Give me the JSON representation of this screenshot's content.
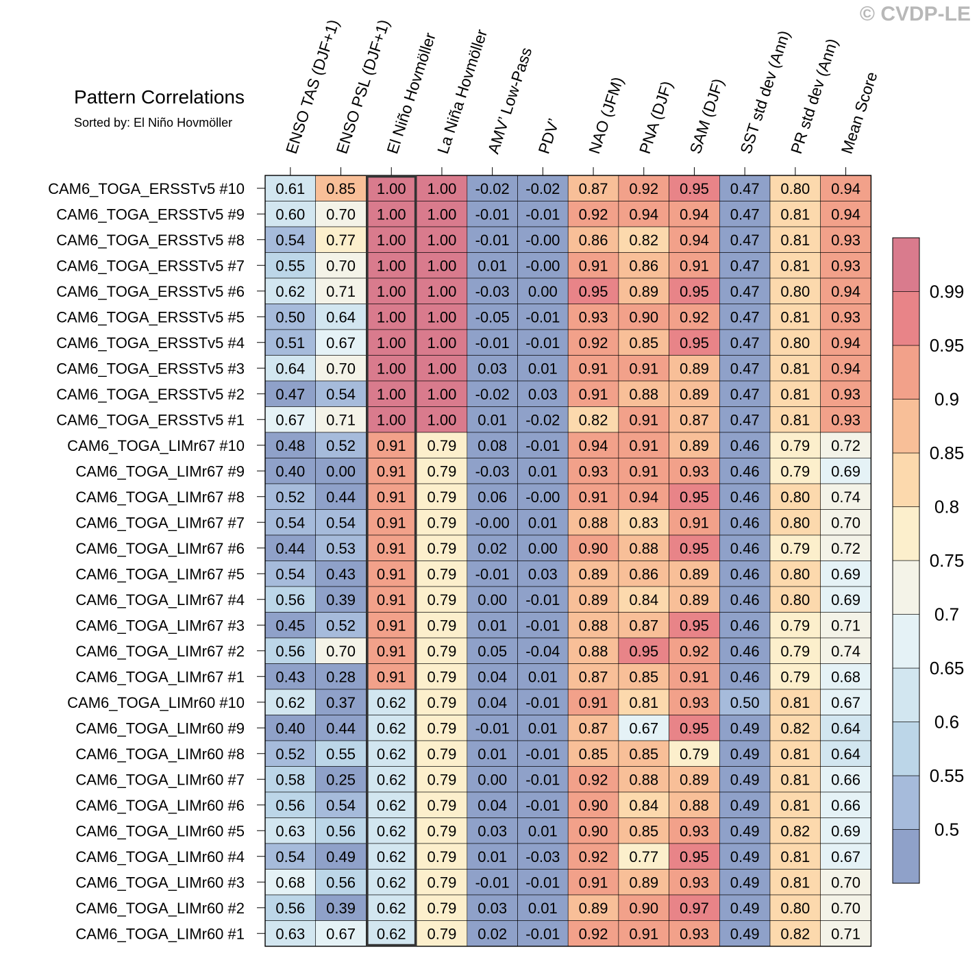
{
  "copyright": "© CVDP-LE",
  "title": "Pattern Correlations",
  "subtitle": "Sorted by: El Niño Hovmöller",
  "colors": [
    "#8fa1c9",
    "#a6bbdb",
    "#bcd6e8",
    "#d2e6f0",
    "#e5f2f6",
    "#f4f3e8",
    "#fcefcc",
    "#fcd9ad",
    "#f8bf98",
    "#f2a18a",
    "#e88488",
    "#d97b8d"
  ],
  "chart_data": {
    "type": "heatmap",
    "title": "Pattern Correlations",
    "subtitle": "Sorted by: El Niño Hovmöller",
    "highlight_column": "El Niño Hovmöller",
    "columns": [
      "ENSO TAS (DJF+1)",
      "ENSO PSL (DJF+1)",
      "El Niño Hovmöller",
      "La Niña Hovmöller",
      "AMV’ Low-Pass",
      "PDV’",
      "NAO (JFM)",
      "PNA (DJF)",
      "SAM (DJF)",
      "SST std dev (Ann)",
      "PR std dev (Ann)",
      "Mean Score"
    ],
    "rows": [
      "CAM6_TOGA_ERSSTv5 #10",
      "CAM6_TOGA_ERSSTv5 #9",
      "CAM6_TOGA_ERSSTv5 #8",
      "CAM6_TOGA_ERSSTv5 #7",
      "CAM6_TOGA_ERSSTv5 #6",
      "CAM6_TOGA_ERSSTv5 #5",
      "CAM6_TOGA_ERSSTv5 #4",
      "CAM6_TOGA_ERSSTv5 #3",
      "CAM6_TOGA_ERSSTv5 #2",
      "CAM6_TOGA_ERSSTv5 #1",
      "CAM6_TOGA_LIMr67 #10",
      "CAM6_TOGA_LIMr67 #9",
      "CAM6_TOGA_LIMr67 #8",
      "CAM6_TOGA_LIMr67 #7",
      "CAM6_TOGA_LIMr67 #6",
      "CAM6_TOGA_LIMr67 #5",
      "CAM6_TOGA_LIMr67 #4",
      "CAM6_TOGA_LIMr67 #3",
      "CAM6_TOGA_LIMr67 #2",
      "CAM6_TOGA_LIMr67 #1",
      "CAM6_TOGA_LIMr60 #10",
      "CAM6_TOGA_LIMr60 #9",
      "CAM6_TOGA_LIMr60 #8",
      "CAM6_TOGA_LIMr60 #7",
      "CAM6_TOGA_LIMr60 #6",
      "CAM6_TOGA_LIMr60 #5",
      "CAM6_TOGA_LIMr60 #4",
      "CAM6_TOGA_LIMr60 #3",
      "CAM6_TOGA_LIMr60 #2",
      "CAM6_TOGA_LIMr60 #1"
    ],
    "values": [
      [
        "0.61",
        "0.85",
        "1.00",
        "1.00",
        "-0.02",
        "-0.02",
        "0.87",
        "0.92",
        "0.95",
        "0.47",
        "0.80",
        "0.94"
      ],
      [
        "0.60",
        "0.70",
        "1.00",
        "1.00",
        "-0.01",
        "-0.01",
        "0.92",
        "0.94",
        "0.94",
        "0.47",
        "0.81",
        "0.94"
      ],
      [
        "0.54",
        "0.77",
        "1.00",
        "1.00",
        "-0.01",
        "-0.00",
        "0.86",
        "0.82",
        "0.94",
        "0.47",
        "0.81",
        "0.93"
      ],
      [
        "0.55",
        "0.70",
        "1.00",
        "1.00",
        "0.01",
        "-0.00",
        "0.91",
        "0.86",
        "0.91",
        "0.47",
        "0.81",
        "0.93"
      ],
      [
        "0.62",
        "0.71",
        "1.00",
        "1.00",
        "-0.03",
        "0.00",
        "0.95",
        "0.89",
        "0.95",
        "0.47",
        "0.80",
        "0.94"
      ],
      [
        "0.50",
        "0.64",
        "1.00",
        "1.00",
        "-0.05",
        "-0.01",
        "0.93",
        "0.90",
        "0.92",
        "0.47",
        "0.81",
        "0.93"
      ],
      [
        "0.51",
        "0.67",
        "1.00",
        "1.00",
        "-0.01",
        "-0.01",
        "0.92",
        "0.85",
        "0.95",
        "0.47",
        "0.80",
        "0.94"
      ],
      [
        "0.64",
        "0.70",
        "1.00",
        "1.00",
        "0.03",
        "0.01",
        "0.91",
        "0.91",
        "0.89",
        "0.47",
        "0.81",
        "0.94"
      ],
      [
        "0.47",
        "0.54",
        "1.00",
        "1.00",
        "-0.02",
        "0.03",
        "0.91",
        "0.88",
        "0.89",
        "0.47",
        "0.81",
        "0.93"
      ],
      [
        "0.67",
        "0.71",
        "1.00",
        "1.00",
        "0.01",
        "-0.02",
        "0.82",
        "0.91",
        "0.87",
        "0.47",
        "0.81",
        "0.93"
      ],
      [
        "0.48",
        "0.52",
        "0.91",
        "0.79",
        "0.08",
        "-0.01",
        "0.94",
        "0.91",
        "0.89",
        "0.46",
        "0.79",
        "0.72"
      ],
      [
        "0.40",
        "0.00",
        "0.91",
        "0.79",
        "-0.03",
        "0.01",
        "0.93",
        "0.91",
        "0.93",
        "0.46",
        "0.79",
        "0.69"
      ],
      [
        "0.52",
        "0.44",
        "0.91",
        "0.79",
        "0.06",
        "-0.00",
        "0.91",
        "0.94",
        "0.95",
        "0.46",
        "0.80",
        "0.74"
      ],
      [
        "0.54",
        "0.54",
        "0.91",
        "0.79",
        "-0.00",
        "0.01",
        "0.88",
        "0.83",
        "0.91",
        "0.46",
        "0.80",
        "0.70"
      ],
      [
        "0.44",
        "0.53",
        "0.91",
        "0.79",
        "0.02",
        "0.00",
        "0.90",
        "0.88",
        "0.95",
        "0.46",
        "0.79",
        "0.72"
      ],
      [
        "0.54",
        "0.43",
        "0.91",
        "0.79",
        "-0.01",
        "0.03",
        "0.89",
        "0.86",
        "0.89",
        "0.46",
        "0.80",
        "0.69"
      ],
      [
        "0.56",
        "0.39",
        "0.91",
        "0.79",
        "0.00",
        "-0.01",
        "0.89",
        "0.84",
        "0.89",
        "0.46",
        "0.80",
        "0.69"
      ],
      [
        "0.45",
        "0.52",
        "0.91",
        "0.79",
        "0.01",
        "-0.01",
        "0.88",
        "0.87",
        "0.95",
        "0.46",
        "0.79",
        "0.71"
      ],
      [
        "0.56",
        "0.70",
        "0.91",
        "0.79",
        "0.05",
        "-0.04",
        "0.88",
        "0.95",
        "0.92",
        "0.46",
        "0.79",
        "0.74"
      ],
      [
        "0.43",
        "0.28",
        "0.91",
        "0.79",
        "0.04",
        "0.01",
        "0.87",
        "0.85",
        "0.91",
        "0.46",
        "0.79",
        "0.68"
      ],
      [
        "0.62",
        "0.37",
        "0.62",
        "0.79",
        "0.04",
        "-0.01",
        "0.91",
        "0.81",
        "0.93",
        "0.50",
        "0.81",
        "0.67"
      ],
      [
        "0.40",
        "0.44",
        "0.62",
        "0.79",
        "-0.01",
        "0.01",
        "0.87",
        "0.67",
        "0.95",
        "0.49",
        "0.82",
        "0.64"
      ],
      [
        "0.52",
        "0.55",
        "0.62",
        "0.79",
        "0.01",
        "-0.01",
        "0.85",
        "0.85",
        "0.79",
        "0.49",
        "0.81",
        "0.64"
      ],
      [
        "0.58",
        "0.25",
        "0.62",
        "0.79",
        "0.00",
        "-0.01",
        "0.92",
        "0.88",
        "0.89",
        "0.49",
        "0.81",
        "0.66"
      ],
      [
        "0.56",
        "0.54",
        "0.62",
        "0.79",
        "0.04",
        "-0.01",
        "0.90",
        "0.84",
        "0.88",
        "0.49",
        "0.81",
        "0.66"
      ],
      [
        "0.63",
        "0.56",
        "0.62",
        "0.79",
        "0.03",
        "0.01",
        "0.90",
        "0.85",
        "0.93",
        "0.49",
        "0.82",
        "0.69"
      ],
      [
        "0.54",
        "0.49",
        "0.62",
        "0.79",
        "0.01",
        "-0.03",
        "0.92",
        "0.77",
        "0.95",
        "0.49",
        "0.81",
        "0.67"
      ],
      [
        "0.68",
        "0.56",
        "0.62",
        "0.79",
        "-0.01",
        "-0.01",
        "0.91",
        "0.89",
        "0.93",
        "0.49",
        "0.81",
        "0.70"
      ],
      [
        "0.56",
        "0.39",
        "0.62",
        "0.79",
        "0.03",
        "0.01",
        "0.89",
        "0.90",
        "0.97",
        "0.49",
        "0.80",
        "0.70"
      ],
      [
        "0.63",
        "0.67",
        "0.62",
        "0.79",
        "0.02",
        "-0.01",
        "0.92",
        "0.91",
        "0.93",
        "0.49",
        "0.82",
        "0.71"
      ]
    ],
    "colorbar": {
      "levels": [
        0.5,
        0.55,
        0.6,
        0.65,
        0.7,
        0.75,
        0.8,
        0.85,
        0.9,
        0.95,
        0.99
      ],
      "labels": [
        "0.5",
        "0.55",
        "0.6",
        "0.65",
        "0.7",
        "0.75",
        "0.8",
        "0.85",
        "0.9",
        "0.95",
        "0.99"
      ]
    }
  }
}
